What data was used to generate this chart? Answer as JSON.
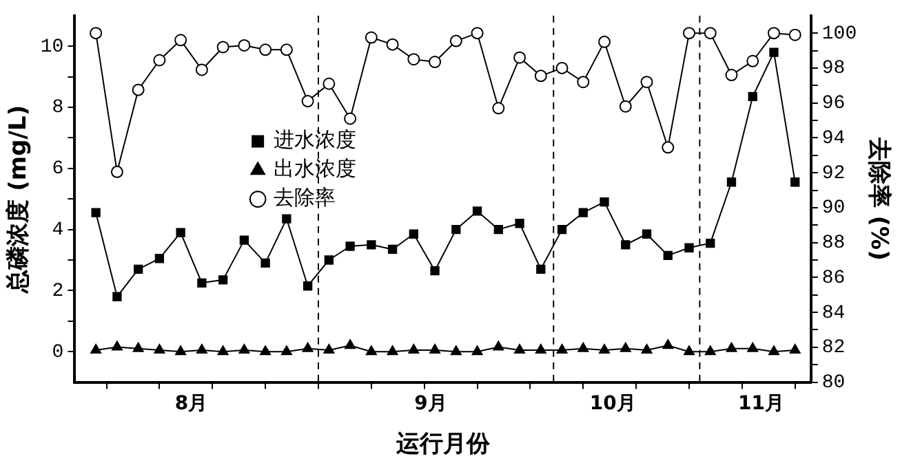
{
  "chart_data": {
    "type": "line",
    "xlabel": "运行月份",
    "ylabel": "总磷浓度 (mg/L)",
    "y2label": "去除率 (%)",
    "categories": [
      null,
      null,
      null,
      null,
      null,
      null,
      null,
      null,
      null,
      null,
      null,
      null,
      null,
      null,
      null,
      null,
      null,
      null,
      null,
      null,
      null,
      null,
      null,
      null,
      null,
      null,
      null,
      null,
      null,
      null,
      null,
      null,
      null,
      null
    ],
    "annotations": [
      "8月",
      "9月",
      "10月",
      "11月"
    ],
    "ylim": [
      -1,
      11
    ],
    "yticks": [
      0,
      {
        "value": 1,
        "label": null
      },
      2,
      {
        "value": 3,
        "label": null
      },
      4,
      {
        "value": 5,
        "label": null
      },
      6,
      {
        "value": 7,
        "label": null
      },
      8,
      {
        "value": 9,
        "label": null
      },
      10
    ],
    "y2lim": [
      80,
      101
    ],
    "y2ticks": [
      80,
      {
        "value": 81,
        "label": null
      },
      82,
      {
        "value": 83,
        "label": null
      },
      84,
      {
        "value": 85,
        "label": null
      },
      86,
      {
        "value": 87,
        "label": null
      },
      88,
      {
        "value": 89,
        "label": null
      },
      90,
      {
        "value": 91,
        "label": null
      },
      92,
      {
        "value": 93,
        "label": null
      },
      94,
      {
        "value": 95,
        "label": null
      },
      96,
      {
        "value": 97,
        "label": null
      },
      98,
      {
        "value": 99,
        "label": null
      },
      100
    ],
    "series": [
      {
        "name": "进水浓度",
        "color": "#000000",
        "marker": "square",
        "values": [
          4.55,
          1.8,
          2.7,
          3.05,
          3.9,
          2.25,
          2.35,
          3.65,
          2.9,
          4.35,
          2.15,
          3.0,
          3.45,
          3.5,
          3.35,
          3.85,
          2.65,
          4.0,
          4.6,
          4.0,
          4.2,
          2.7,
          4.0,
          4.55,
          4.9,
          3.5,
          3.85,
          3.15,
          3.4,
          3.55,
          5.55,
          8.35,
          9.8,
          5.55
        ]
      },
      {
        "name": "出水浓度",
        "color": "#000000",
        "marker": "triangle",
        "values": [
          0.05,
          0.15,
          0.1,
          0.05,
          0.0,
          0.05,
          0.0,
          0.05,
          0.0,
          0.0,
          0.1,
          0.05,
          0.2,
          0.0,
          0.0,
          0.05,
          0.05,
          0.0,
          0.0,
          0.15,
          0.05,
          0.05,
          0.05,
          0.1,
          0.05,
          0.1,
          0.05,
          0.2,
          0.0,
          0.0,
          0.1,
          0.1,
          0.0,
          0.05
        ]
      },
      {
        "name": "去除率",
        "color": "#000000",
        "marker": "circle",
        "axis": "y2",
        "values": [
          100,
          92.05,
          96.75,
          98.45,
          99.6,
          97.9,
          99.2,
          99.3,
          99.05,
          99.05,
          96.1,
          97.1,
          95.1,
          99.75,
          99.35,
          98.5,
          98.35,
          99.55,
          100,
          95.7,
          98.6,
          97.55,
          98.0,
          97.2,
          99.5,
          95.8,
          97.2,
          93.45,
          100,
          100,
          97.6,
          98.4,
          100,
          99.9
        ]
      }
    ],
    "legend": "center left",
    "grid": false,
    "line_style": "solid"
  }
}
